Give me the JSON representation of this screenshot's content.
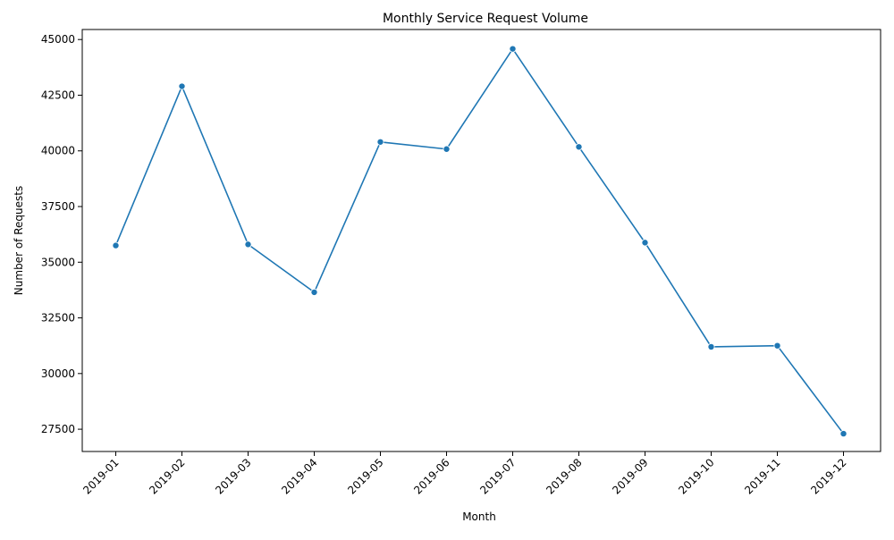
{
  "chart_data": {
    "type": "line",
    "title": "Monthly Service Request Volume",
    "xlabel": "Month",
    "ylabel": "Number of Requests",
    "categories": [
      "2019-01",
      "2019-02",
      "2019-03",
      "2019-04",
      "2019-05",
      "2019-06",
      "2019-07",
      "2019-08",
      "2019-09",
      "2019-10",
      "2019-11",
      "2019-12"
    ],
    "series": [
      {
        "values": [
          35750,
          42900,
          35800,
          33650,
          40400,
          40080,
          44580,
          40180,
          35880,
          31200,
          31250,
          27300
        ],
        "color": "#1f77b4"
      }
    ],
    "ylim": [
      26500,
      45450
    ],
    "yticks": [
      27500,
      30000,
      32500,
      35000,
      37500,
      40000,
      42500,
      45000
    ],
    "grid": false,
    "legend": "none",
    "x_tick_rotation_deg": 45
  }
}
